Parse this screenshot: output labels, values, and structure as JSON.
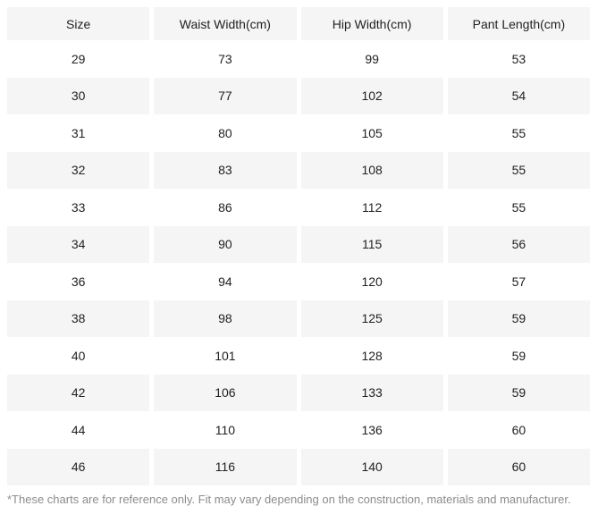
{
  "table": {
    "columns": [
      "Size",
      "Waist Width(cm)",
      "Hip Width(cm)",
      "Pant Length(cm)"
    ],
    "rows": [
      [
        "29",
        "73",
        "99",
        "53"
      ],
      [
        "30",
        "77",
        "102",
        "54"
      ],
      [
        "31",
        "80",
        "105",
        "55"
      ],
      [
        "32",
        "83",
        "108",
        "55"
      ],
      [
        "33",
        "86",
        "112",
        "55"
      ],
      [
        "34",
        "90",
        "115",
        "56"
      ],
      [
        "36",
        "94",
        "120",
        "57"
      ],
      [
        "38",
        "98",
        "125",
        "59"
      ],
      [
        "40",
        "101",
        "128",
        "59"
      ],
      [
        "42",
        "106",
        "133",
        "59"
      ],
      [
        "44",
        "110",
        "136",
        "60"
      ],
      [
        "46",
        "116",
        "140",
        "60"
      ]
    ]
  },
  "footnote": "*These charts are for reference only. Fit may vary depending on the construction, materials and manufacturer.",
  "colors": {
    "stripe_background": "#f5f5f6",
    "cell_text": "#222222",
    "footnote_text": "#8c8c8c"
  }
}
